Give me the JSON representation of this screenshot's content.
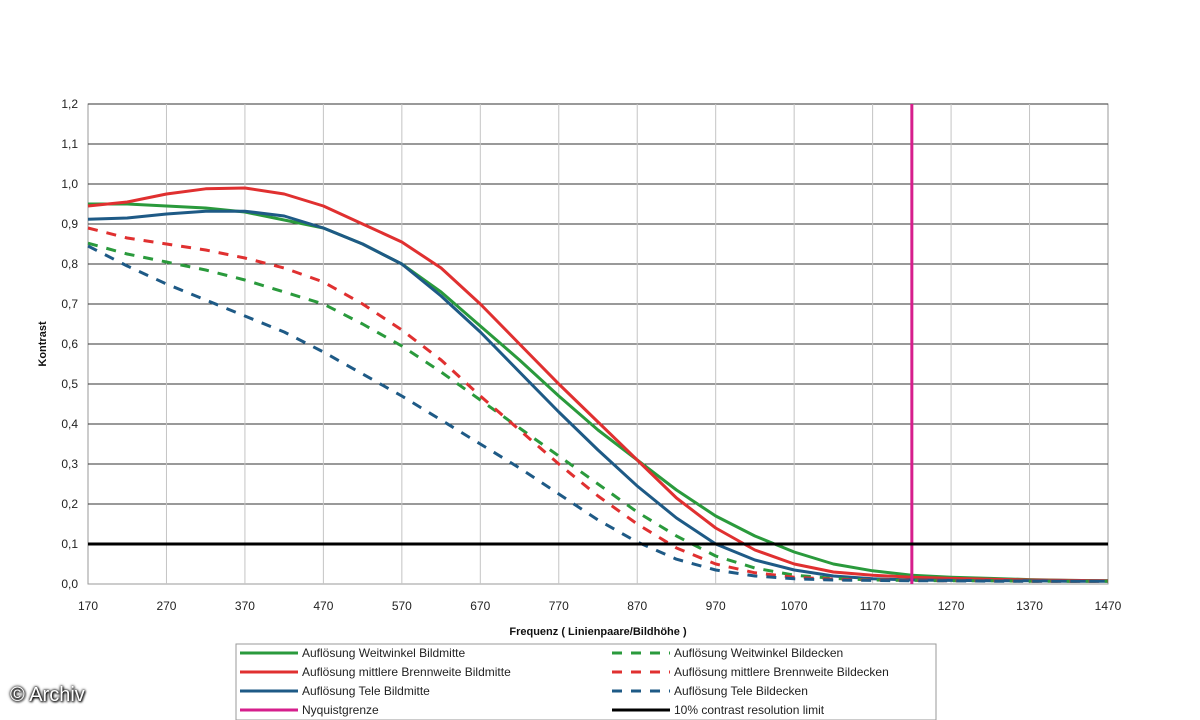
{
  "chart_data": {
    "type": "line",
    "ylabel": "Kontrast",
    "xlabel": "Frequenz ( Linienpaare/Bildhöhe )",
    "xlim": [
      170,
      1470
    ],
    "ylim": [
      0.0,
      1.2
    ],
    "x_ticks": [
      "170",
      "270",
      "370",
      "470",
      "570",
      "670",
      "770",
      "870",
      "970",
      "1070",
      "1170",
      "1270",
      "1370",
      "1470"
    ],
    "y_ticks": [
      "0,0",
      "0,1",
      "0,2",
      "0,3",
      "0,4",
      "0,5",
      "0,6",
      "0,7",
      "0,8",
      "0,9",
      "1,0",
      "1,1",
      "1,2"
    ],
    "grid": "horizontal",
    "legend_position": "bottom",
    "series": [
      {
        "name": "Auflösung Weitwinkel Bildmitte",
        "color": "#2a9a3c",
        "style": "solid",
        "points": [
          [
            170,
            0.95
          ],
          [
            220,
            0.95
          ],
          [
            270,
            0.945
          ],
          [
            320,
            0.94
          ],
          [
            370,
            0.93
          ],
          [
            420,
            0.91
          ],
          [
            470,
            0.89
          ],
          [
            520,
            0.85
          ],
          [
            570,
            0.8
          ],
          [
            620,
            0.73
          ],
          [
            670,
            0.645
          ],
          [
            720,
            0.56
          ],
          [
            770,
            0.47
          ],
          [
            820,
            0.385
          ],
          [
            870,
            0.31
          ],
          [
            920,
            0.235
          ],
          [
            970,
            0.17
          ],
          [
            1020,
            0.12
          ],
          [
            1070,
            0.08
          ],
          [
            1120,
            0.05
          ],
          [
            1170,
            0.033
          ],
          [
            1220,
            0.022
          ],
          [
            1270,
            0.017
          ],
          [
            1320,
            0.014
          ],
          [
            1370,
            0.011
          ],
          [
            1420,
            0.009
          ],
          [
            1470,
            0.008
          ]
        ]
      },
      {
        "name": "Auflösung mittlere Brennweite Bildmitte",
        "color": "#e03030",
        "style": "solid",
        "points": [
          [
            170,
            0.945
          ],
          [
            220,
            0.955
          ],
          [
            270,
            0.975
          ],
          [
            320,
            0.988
          ],
          [
            370,
            0.99
          ],
          [
            420,
            0.975
          ],
          [
            470,
            0.945
          ],
          [
            520,
            0.9
          ],
          [
            570,
            0.855
          ],
          [
            620,
            0.79
          ],
          [
            670,
            0.7
          ],
          [
            720,
            0.6
          ],
          [
            770,
            0.5
          ],
          [
            820,
            0.405
          ],
          [
            870,
            0.31
          ],
          [
            920,
            0.215
          ],
          [
            970,
            0.14
          ],
          [
            1020,
            0.085
          ],
          [
            1070,
            0.05
          ],
          [
            1120,
            0.03
          ],
          [
            1170,
            0.022
          ],
          [
            1220,
            0.017
          ],
          [
            1270,
            0.014
          ],
          [
            1320,
            0.012
          ],
          [
            1370,
            0.01
          ],
          [
            1420,
            0.009
          ],
          [
            1470,
            0.008
          ]
        ]
      },
      {
        "name": "Auflösung Tele Bildmitte",
        "color": "#1e5a86",
        "style": "solid",
        "points": [
          [
            170,
            0.912
          ],
          [
            220,
            0.915
          ],
          [
            270,
            0.925
          ],
          [
            320,
            0.932
          ],
          [
            370,
            0.932
          ],
          [
            420,
            0.92
          ],
          [
            470,
            0.89
          ],
          [
            520,
            0.85
          ],
          [
            570,
            0.8
          ],
          [
            620,
            0.72
          ],
          [
            670,
            0.63
          ],
          [
            720,
            0.53
          ],
          [
            770,
            0.43
          ],
          [
            820,
            0.335
          ],
          [
            870,
            0.245
          ],
          [
            920,
            0.165
          ],
          [
            970,
            0.1
          ],
          [
            1020,
            0.06
          ],
          [
            1070,
            0.035
          ],
          [
            1120,
            0.02
          ],
          [
            1170,
            0.013
          ],
          [
            1220,
            0.01
          ],
          [
            1270,
            0.009
          ],
          [
            1320,
            0.008
          ],
          [
            1370,
            0.008
          ],
          [
            1420,
            0.007
          ],
          [
            1470,
            0.007
          ]
        ]
      },
      {
        "name": "Auflösung Weitwinkel Bildecken",
        "color": "#2a9a3c",
        "style": "dashed",
        "points": [
          [
            170,
            0.852
          ],
          [
            220,
            0.825
          ],
          [
            270,
            0.805
          ],
          [
            320,
            0.785
          ],
          [
            370,
            0.76
          ],
          [
            420,
            0.73
          ],
          [
            470,
            0.7
          ],
          [
            520,
            0.65
          ],
          [
            570,
            0.595
          ],
          [
            620,
            0.53
          ],
          [
            670,
            0.46
          ],
          [
            720,
            0.39
          ],
          [
            770,
            0.32
          ],
          [
            820,
            0.25
          ],
          [
            870,
            0.18
          ],
          [
            920,
            0.12
          ],
          [
            970,
            0.07
          ],
          [
            1020,
            0.04
          ],
          [
            1070,
            0.022
          ],
          [
            1120,
            0.014
          ],
          [
            1170,
            0.01
          ],
          [
            1220,
            0.009
          ],
          [
            1270,
            0.008
          ],
          [
            1320,
            0.008
          ],
          [
            1370,
            0.007
          ],
          [
            1420,
            0.007
          ],
          [
            1470,
            0.007
          ]
        ]
      },
      {
        "name": "Auflösung mittlere Brennweite Bildecken",
        "color": "#e03030",
        "style": "dashed",
        "points": [
          [
            170,
            0.89
          ],
          [
            220,
            0.865
          ],
          [
            270,
            0.85
          ],
          [
            320,
            0.835
          ],
          [
            370,
            0.815
          ],
          [
            420,
            0.79
          ],
          [
            470,
            0.755
          ],
          [
            520,
            0.7
          ],
          [
            570,
            0.635
          ],
          [
            620,
            0.56
          ],
          [
            670,
            0.47
          ],
          [
            720,
            0.385
          ],
          [
            770,
            0.3
          ],
          [
            820,
            0.22
          ],
          [
            870,
            0.15
          ],
          [
            920,
            0.09
          ],
          [
            970,
            0.05
          ],
          [
            1020,
            0.028
          ],
          [
            1070,
            0.017
          ],
          [
            1120,
            0.012
          ],
          [
            1170,
            0.01
          ],
          [
            1220,
            0.009
          ],
          [
            1270,
            0.008
          ],
          [
            1320,
            0.008
          ],
          [
            1370,
            0.007
          ],
          [
            1420,
            0.007
          ],
          [
            1470,
            0.007
          ]
        ]
      },
      {
        "name": "Auflösung Tele Bildecken",
        "color": "#1e5a86",
        "style": "dashed",
        "points": [
          [
            170,
            0.845
          ],
          [
            220,
            0.795
          ],
          [
            270,
            0.75
          ],
          [
            320,
            0.71
          ],
          [
            370,
            0.67
          ],
          [
            420,
            0.63
          ],
          [
            470,
            0.58
          ],
          [
            520,
            0.525
          ],
          [
            570,
            0.47
          ],
          [
            620,
            0.41
          ],
          [
            670,
            0.35
          ],
          [
            720,
            0.29
          ],
          [
            770,
            0.225
          ],
          [
            820,
            0.16
          ],
          [
            870,
            0.105
          ],
          [
            920,
            0.062
          ],
          [
            970,
            0.035
          ],
          [
            1020,
            0.02
          ],
          [
            1070,
            0.013
          ],
          [
            1120,
            0.01
          ],
          [
            1170,
            0.009
          ],
          [
            1220,
            0.008
          ],
          [
            1270,
            0.008
          ],
          [
            1320,
            0.007
          ],
          [
            1370,
            0.007
          ],
          [
            1420,
            0.007
          ],
          [
            1470,
            0.007
          ]
        ]
      }
    ],
    "reference_lines": [
      {
        "name": "Nyquistgrenze",
        "color": "#d61f8c",
        "orientation": "vertical",
        "value": 1220
      },
      {
        "name": "10% contrast resolution limit",
        "color": "#000000",
        "orientation": "horizontal",
        "value": 0.1
      }
    ],
    "legend": [
      {
        "label": "Auflösung Weitwinkel Bildmitte",
        "color": "#2a9a3c",
        "style": "solid"
      },
      {
        "label": "Auflösung Weitwinkel Bildecken",
        "color": "#2a9a3c",
        "style": "dashed"
      },
      {
        "label": "Auflösung mittlere Brennweite Bildmitte",
        "color": "#e03030",
        "style": "solid"
      },
      {
        "label": "Auflösung mittlere Brennweite Bildecken",
        "color": "#e03030",
        "style": "dashed"
      },
      {
        "label": "Auflösung Tele Bildmitte",
        "color": "#1e5a86",
        "style": "solid"
      },
      {
        "label": "Auflösung Tele Bildecken",
        "color": "#1e5a86",
        "style": "dashed"
      },
      {
        "label": "Nyquistgrenze",
        "color": "#d61f8c",
        "style": "solid"
      },
      {
        "label": "10% contrast resolution limit",
        "color": "#000000",
        "style": "solid"
      }
    ]
  },
  "watermark": "© Archiv"
}
